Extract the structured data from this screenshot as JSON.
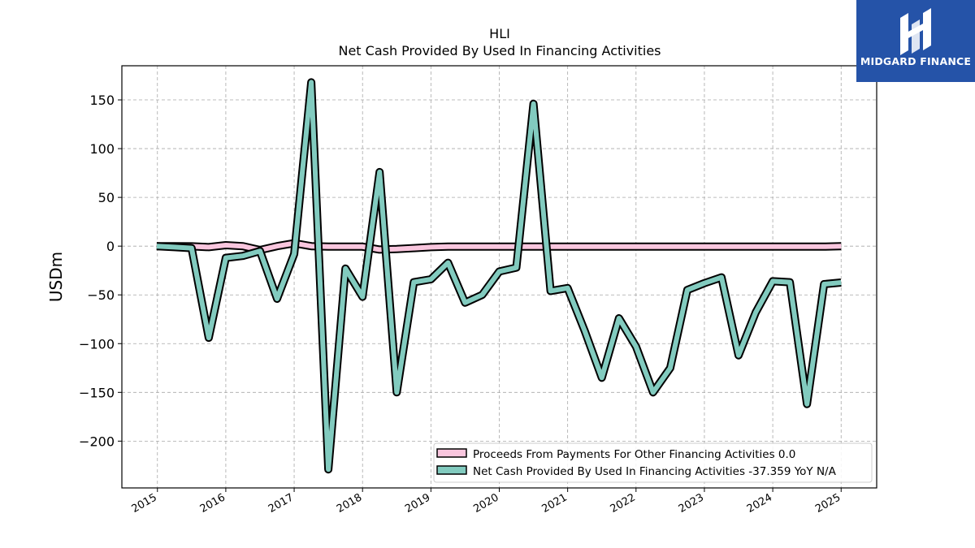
{
  "brand": {
    "name": "MIDGARD FINANCE",
    "color": "#2553a8"
  },
  "chart_data": {
    "type": "line",
    "title": "HLI",
    "subtitle": "Net Cash Provided By Used In Financing Activities",
    "xlabel": "",
    "ylabel": "USDm",
    "ylim": [
      -248,
      185
    ],
    "xlim": [
      2014.48,
      2025.52
    ],
    "yticks": [
      150,
      100,
      50,
      0,
      -50,
      -100,
      -150,
      -200
    ],
    "ytick_labels": [
      "150",
      "100",
      "50",
      "0",
      "−50",
      "−100",
      "−150",
      "−200"
    ],
    "xticks": [
      2015,
      2016,
      2017,
      2018,
      2019,
      2020,
      2021,
      2022,
      2023,
      2024,
      2025
    ],
    "xtick_labels": [
      "2015",
      "2016",
      "2017",
      "2018",
      "2019",
      "2020",
      "2021",
      "2022",
      "2023",
      "2024",
      "2025"
    ],
    "grid": true,
    "legend_position": "lower-right",
    "series": [
      {
        "name": "Proceeds From Payments For Other Financing Activities",
        "legend_label": "Proceeds From Payments For Other Financing Activities  0.0",
        "color": "#f9c6de",
        "x": [
          2014.99,
          2015.25,
          2015.5,
          2015.75,
          2016.0,
          2016.25,
          2016.5,
          2016.75,
          2017.0,
          2017.25,
          2017.5,
          2017.75,
          2018.0,
          2018.25,
          2018.5,
          2018.75,
          2019.0,
          2019.25,
          2019.5,
          2019.75,
          2020.0,
          2020.25,
          2020.5,
          2020.75,
          2021.0,
          2021.25,
          2021.5,
          2021.75,
          2022.0,
          2022.25,
          2022.5,
          2022.75,
          2023.0,
          2023.25,
          2023.5,
          2023.75,
          2024.0,
          2024.25,
          2024.5,
          2024.75,
          2025.0
        ],
        "values": [
          0.0,
          0.0,
          -0.2,
          -1.0,
          1.0,
          0.0,
          -4.0,
          0.0,
          3.0,
          0.0,
          -0.5,
          -0.5,
          -0.5,
          -3.5,
          -3.0,
          -2.0,
          -1.0,
          -0.5,
          -0.5,
          -0.5,
          -0.5,
          -0.5,
          -0.5,
          -0.5,
          -0.5,
          -0.5,
          -0.5,
          -0.5,
          -0.5,
          -0.5,
          -0.5,
          -0.5,
          -0.5,
          -0.5,
          -0.5,
          -0.5,
          -0.5,
          -0.5,
          -0.5,
          -0.5,
          0.0
        ]
      },
      {
        "name": "Net Cash Provided By Used In Financing Activities",
        "legend_label": "Net Cash Provided By Used In Financing Activities  -37.359 YoY N/A",
        "color": "#82cbbf",
        "x": [
          2014.99,
          2015.25,
          2015.5,
          2015.75,
          2016.0,
          2016.25,
          2016.5,
          2016.75,
          2017.0,
          2017.25,
          2017.5,
          2017.75,
          2018.0,
          2018.25,
          2018.5,
          2018.75,
          2019.0,
          2019.25,
          2019.5,
          2019.75,
          2020.0,
          2020.25,
          2020.5,
          2020.75,
          2021.0,
          2021.25,
          2021.5,
          2021.75,
          2022.0,
          2022.25,
          2022.5,
          2022.75,
          2023.0,
          2023.25,
          2023.5,
          2023.75,
          2024.0,
          2024.25,
          2024.5,
          2024.75,
          2025.0
        ],
        "values": [
          0.0,
          -1.0,
          -2.0,
          -94.0,
          -12.0,
          -10.0,
          -5.0,
          -54.0,
          -8.0,
          168.0,
          -229.0,
          -23.0,
          -52.0,
          76.0,
          -150.0,
          -37.0,
          -34.0,
          -17.0,
          -58.0,
          -50.0,
          -26.0,
          -22.0,
          146.0,
          -46.0,
          -43.0,
          -87.0,
          -135.0,
          -74.0,
          -103.0,
          -150.0,
          -125.0,
          -45.0,
          -38.0,
          -32.0,
          -112.0,
          -68.0,
          -36.0,
          -37.0,
          -162.0,
          -39.0,
          -37.359
        ]
      }
    ]
  }
}
